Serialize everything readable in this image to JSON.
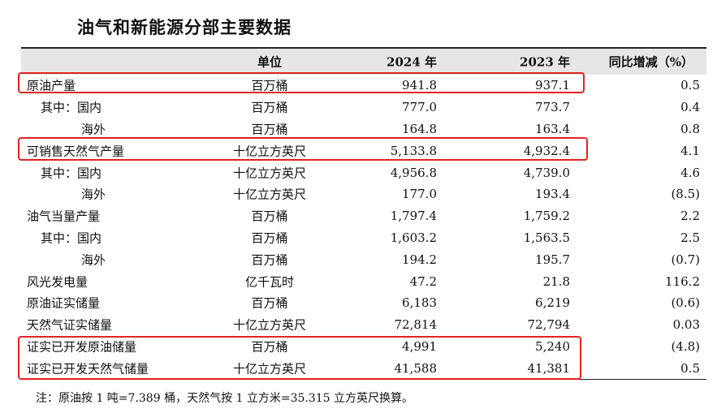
{
  "title": "油气和新能源分部主要数据",
  "table": {
    "headers": {
      "item": "",
      "unit": "单位",
      "y2024": "2024 年",
      "y2023": "2023 年",
      "yoy": "同比增减（%）"
    },
    "rows": [
      {
        "item": "原油产量",
        "unit": "百万桶",
        "y2024": "941.8",
        "y2023": "937.1",
        "yoy": "0.5"
      },
      {
        "item": "其中：国内",
        "unit": "百万桶",
        "y2024": "777.0",
        "y2023": "773.7",
        "yoy": "0.4"
      },
      {
        "item": "海外",
        "unit": "百万桶",
        "y2024": "164.8",
        "y2023": "163.4",
        "yoy": "0.8"
      },
      {
        "item": "可销售天然气产量",
        "unit": "十亿立方英尺",
        "y2024": "5,133.8",
        "y2023": "4,932.4",
        "yoy": "4.1"
      },
      {
        "item": "其中：国内",
        "unit": "十亿立方英尺",
        "y2024": "4,956.8",
        "y2023": "4,739.0",
        "yoy": "4.6"
      },
      {
        "item": "海外",
        "unit": "十亿立方英尺",
        "y2024": "177.0",
        "y2023": "193.4",
        "yoy": "(8.5)"
      },
      {
        "item": "油气当量产量",
        "unit": "百万桶",
        "y2024": "1,797.4",
        "y2023": "1,759.2",
        "yoy": "2.2"
      },
      {
        "item": "其中：国内",
        "unit": "百万桶",
        "y2024": "1,603.2",
        "y2023": "1,563.5",
        "yoy": "2.5"
      },
      {
        "item": "海外",
        "unit": "百万桶",
        "y2024": "194.2",
        "y2023": "195.7",
        "yoy": "(0.7)"
      },
      {
        "item": "风光发电量",
        "unit": "亿千瓦时",
        "y2024": "47.2",
        "y2023": "21.8",
        "yoy": "116.2"
      },
      {
        "item": "原油证实储量",
        "unit": "百万桶",
        "y2024": "6,183",
        "y2023": "6,219",
        "yoy": "(0.6)"
      },
      {
        "item": "天然气证实储量",
        "unit": "十亿立方英尺",
        "y2024": "72,814",
        "y2023": "72,794",
        "yoy": "0.03"
      },
      {
        "item": "证实已开发原油储量",
        "unit": "百万桶",
        "y2024": "4,991",
        "y2023": "5,240",
        "yoy": "(4.8)"
      },
      {
        "item": "证实已开发天然气储量",
        "unit": "十亿立方英尺",
        "y2024": "41,588",
        "y2023": "41,381",
        "yoy": "0.5"
      }
    ]
  },
  "highlight_color": "#e02424",
  "note": "注：原油按 1 吨=7.389 桶，天然气按 1 立方米=35.315 立方英尺换算。"
}
